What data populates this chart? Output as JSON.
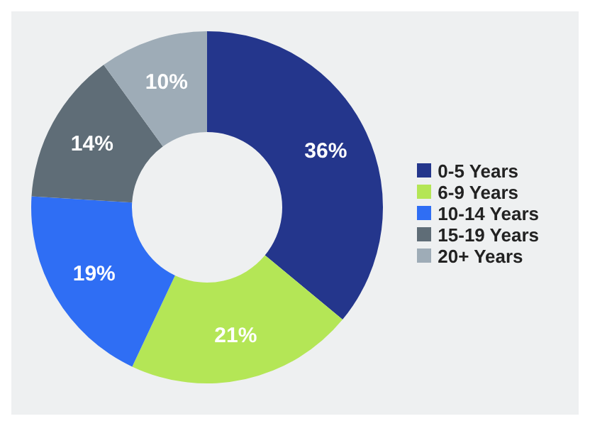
{
  "chart_data": {
    "type": "donut",
    "categories": [
      "0-5 Years",
      "6-9 Years",
      "10-14 Years",
      "15-19 Years",
      "20+ Years"
    ],
    "values": [
      36,
      21,
      19,
      14,
      10
    ],
    "colors": [
      "#24368c",
      "#b4e656",
      "#2f6ef4",
      "#5f6d77",
      "#9eacb7"
    ],
    "value_labels": [
      "36%",
      "21%",
      "19%",
      "14%",
      "10%"
    ],
    "legend": "right"
  }
}
